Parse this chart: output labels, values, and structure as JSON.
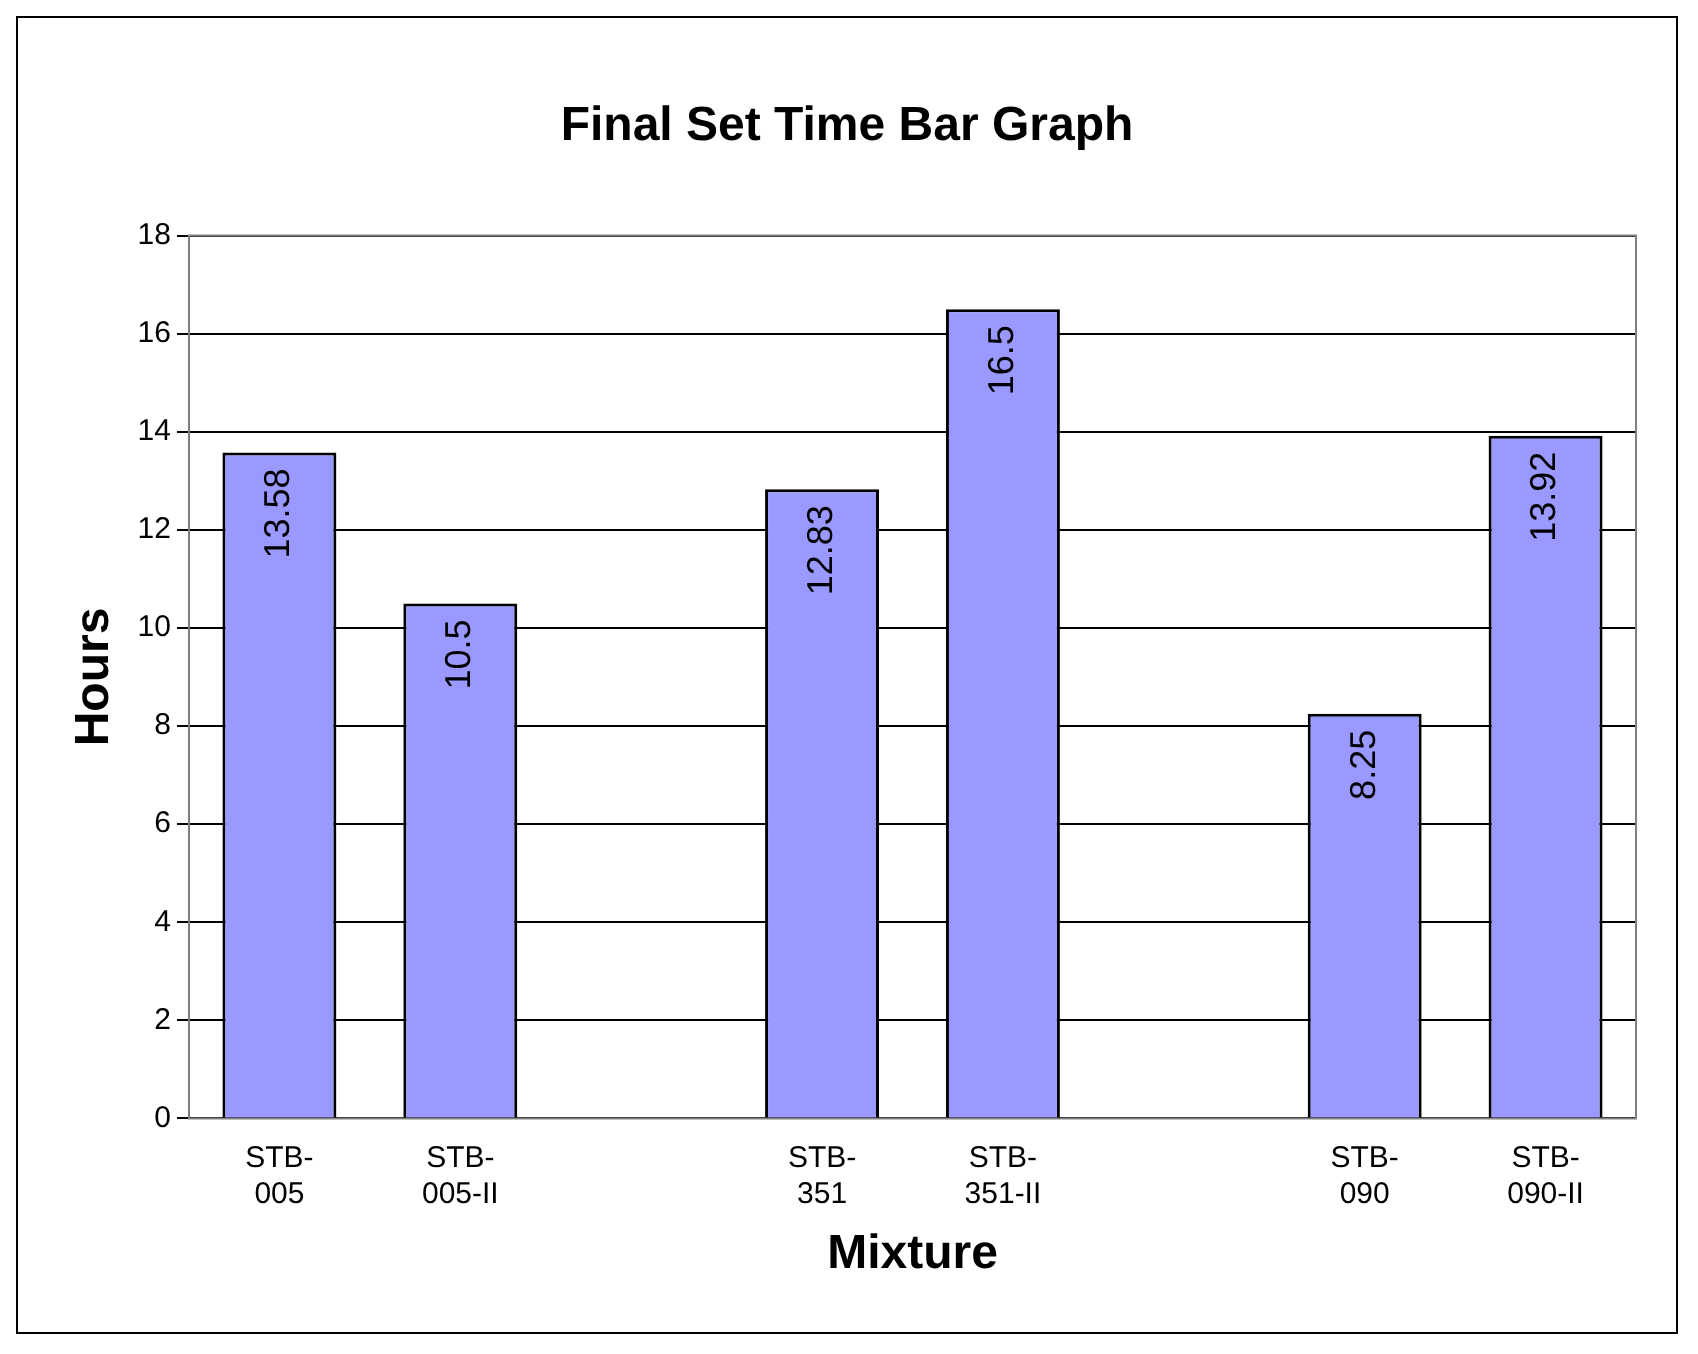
{
  "chart_data": {
    "type": "bar",
    "title": "Final Set Time Bar Graph",
    "xlabel": "Mixture",
    "ylabel": "Hours",
    "categories": [
      "STB-005",
      "STB-005-II",
      null,
      "STB-351",
      "STB-351-II",
      null,
      "STB-090",
      "STB-090-II"
    ],
    "values": [
      13.58,
      10.5,
      null,
      12.83,
      16.5,
      null,
      8.25,
      13.92
    ],
    "color": "#9999ff",
    "ylim": [
      0,
      18
    ],
    "yticks": [
      0,
      2,
      4,
      6,
      8,
      10,
      12,
      14,
      16,
      18
    ],
    "grid": "y",
    "legend": false,
    "data_labels": true
  }
}
